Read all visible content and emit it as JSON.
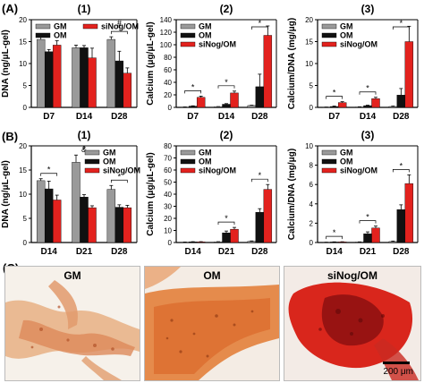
{
  "panel_letters": {
    "a": "(A)",
    "b": "(B)",
    "c": "(C)"
  },
  "photos": {
    "labels": [
      "GM",
      "OM",
      "siNog/OM"
    ],
    "scale_label": "200 μm"
  },
  "colors": {
    "GM": "#9a9a9a",
    "OM": "#111111",
    "siNog/OM": "#e3221e"
  },
  "chart_data": [
    {
      "type": "bar",
      "row": "A",
      "index_label": "(1)",
      "categories": [
        "D7",
        "D14",
        "D28"
      ],
      "ylabel": "DNA (ng/μL-gel)",
      "ylim": [
        0,
        20
      ],
      "yticks": [
        0,
        5,
        10,
        15,
        20
      ],
      "legend": "top-left",
      "series": [
        {
          "name": "GM",
          "values": [
            15.5,
            13.6,
            15.5
          ],
          "errors": [
            1.2,
            0.6,
            0.6
          ]
        },
        {
          "name": "OM",
          "values": [
            12.7,
            13.6,
            10.6
          ],
          "errors": [
            0.5,
            0.5,
            2.2
          ]
        },
        {
          "name": "siNog/OM",
          "values": [
            14.2,
            11.3,
            7.8
          ],
          "errors": [
            1.0,
            2.2,
            1.2
          ]
        }
      ],
      "annotations": [
        {
          "text": "*",
          "group": 2
        },
        {
          "text": "#",
          "group": 2
        }
      ]
    },
    {
      "type": "bar",
      "row": "A",
      "index_label": "(2)",
      "categories": [
        "D7",
        "D14",
        "D28"
      ],
      "ylabel": "Calcium (μg/μL-gel)",
      "ylim": [
        0,
        140
      ],
      "yticks": [
        0,
        20,
        40,
        60,
        80,
        100,
        120,
        140
      ],
      "legend": "top-left",
      "series": [
        {
          "name": "GM",
          "values": [
            0.5,
            1,
            3
          ],
          "errors": [
            0.2,
            0.3,
            0.5
          ]
        },
        {
          "name": "OM",
          "values": [
            2,
            5,
            33
          ],
          "errors": [
            0.5,
            1,
            20
          ]
        },
        {
          "name": "siNog/OM",
          "values": [
            16,
            23,
            115
          ],
          "errors": [
            2,
            3,
            15
          ]
        }
      ],
      "annotations": [
        {
          "text": "*",
          "group": 0
        },
        {
          "text": "*",
          "group": 1
        },
        {
          "text": "*",
          "group": 2
        }
      ]
    },
    {
      "type": "bar",
      "row": "A",
      "index_label": "(3)",
      "categories": [
        "D7",
        "D14",
        "D28"
      ],
      "ylabel": "Calcium/DNA (mg/μg)",
      "ylim": [
        0,
        20
      ],
      "yticks": [
        0,
        5,
        10,
        15,
        20
      ],
      "legend": "top-left",
      "series": [
        {
          "name": "GM",
          "values": [
            0.05,
            0.1,
            0.2
          ],
          "errors": [
            0.02,
            0.05,
            0.1
          ]
        },
        {
          "name": "OM",
          "values": [
            0.2,
            0.4,
            2.8
          ],
          "errors": [
            0.1,
            0.1,
            1.5
          ]
        },
        {
          "name": "siNog/OM",
          "values": [
            1.1,
            2.0,
            15.0
          ],
          "errors": [
            0.2,
            0.3,
            3.5
          ]
        }
      ],
      "annotations": [
        {
          "text": "*",
          "group": 0
        },
        {
          "text": "*",
          "group": 1
        },
        {
          "text": "*",
          "group": 2
        }
      ]
    },
    {
      "type": "bar",
      "row": "B",
      "index_label": "(1)",
      "categories": [
        "D14",
        "D21",
        "D28"
      ],
      "ylabel": "DNA (ng/μL-gel)",
      "ylim": [
        0,
        20
      ],
      "yticks": [
        0,
        5,
        10,
        15,
        20
      ],
      "legend": "top-right",
      "series": [
        {
          "name": "GM",
          "values": [
            12.8,
            16.6,
            11.0
          ],
          "errors": [
            0.4,
            1.5,
            0.8
          ]
        },
        {
          "name": "OM",
          "values": [
            11.1,
            9.4,
            7.3
          ],
          "errors": [
            1.6,
            0.5,
            0.5
          ]
        },
        {
          "name": "siNog/OM",
          "values": [
            8.8,
            7.2,
            7.2
          ],
          "errors": [
            1.0,
            0.4,
            0.5
          ]
        }
      ],
      "annotations": [
        {
          "text": "*",
          "group": 0
        },
        {
          "text": "&",
          "group": 1
        },
        {
          "text": "*",
          "group": 1
        },
        {
          "text": "*",
          "group": 2
        }
      ]
    },
    {
      "type": "bar",
      "row": "B",
      "index_label": "(2)",
      "categories": [
        "D14",
        "D21",
        "D28"
      ],
      "ylabel": "Calcium (μg/μL-gel)",
      "ylim": [
        0,
        80
      ],
      "yticks": [
        0,
        10,
        20,
        30,
        40,
        50,
        60,
        70,
        80
      ],
      "legend": "top-left",
      "series": [
        {
          "name": "GM",
          "values": [
            0.3,
            0.5,
            1
          ],
          "errors": [
            0.1,
            0.2,
            0.3
          ]
        },
        {
          "name": "OM",
          "values": [
            0.5,
            8,
            25
          ],
          "errors": [
            0.2,
            1.5,
            3
          ]
        },
        {
          "name": "siNog/OM",
          "values": [
            0.5,
            11,
            44
          ],
          "errors": [
            0.2,
            1.5,
            4
          ]
        }
      ],
      "annotations": [
        {
          "text": "*",
          "group": 1
        },
        {
          "text": "*",
          "group": 2
        }
      ]
    },
    {
      "type": "bar",
      "row": "B",
      "index_label": "(3)",
      "categories": [
        "D14",
        "D21",
        "D28"
      ],
      "ylabel": "Calcium/DNA (mg/μg)",
      "ylim": [
        0,
        10
      ],
      "yticks": [
        0,
        2,
        4,
        6,
        8,
        10
      ],
      "legend": "top-left",
      "series": [
        {
          "name": "GM",
          "values": [
            0.02,
            0.05,
            0.1
          ],
          "errors": [
            0.01,
            0.02,
            0.05
          ]
        },
        {
          "name": "OM",
          "values": [
            0.05,
            0.9,
            3.4
          ],
          "errors": [
            0.02,
            0.2,
            0.5
          ]
        },
        {
          "name": "siNog/OM",
          "values": [
            0.06,
            1.5,
            6.1
          ],
          "errors": [
            0.02,
            0.2,
            0.9
          ]
        }
      ],
      "annotations": [
        {
          "text": "*",
          "group": 0
        },
        {
          "text": "*",
          "group": 1
        },
        {
          "text": "*",
          "group": 2
        }
      ]
    }
  ]
}
